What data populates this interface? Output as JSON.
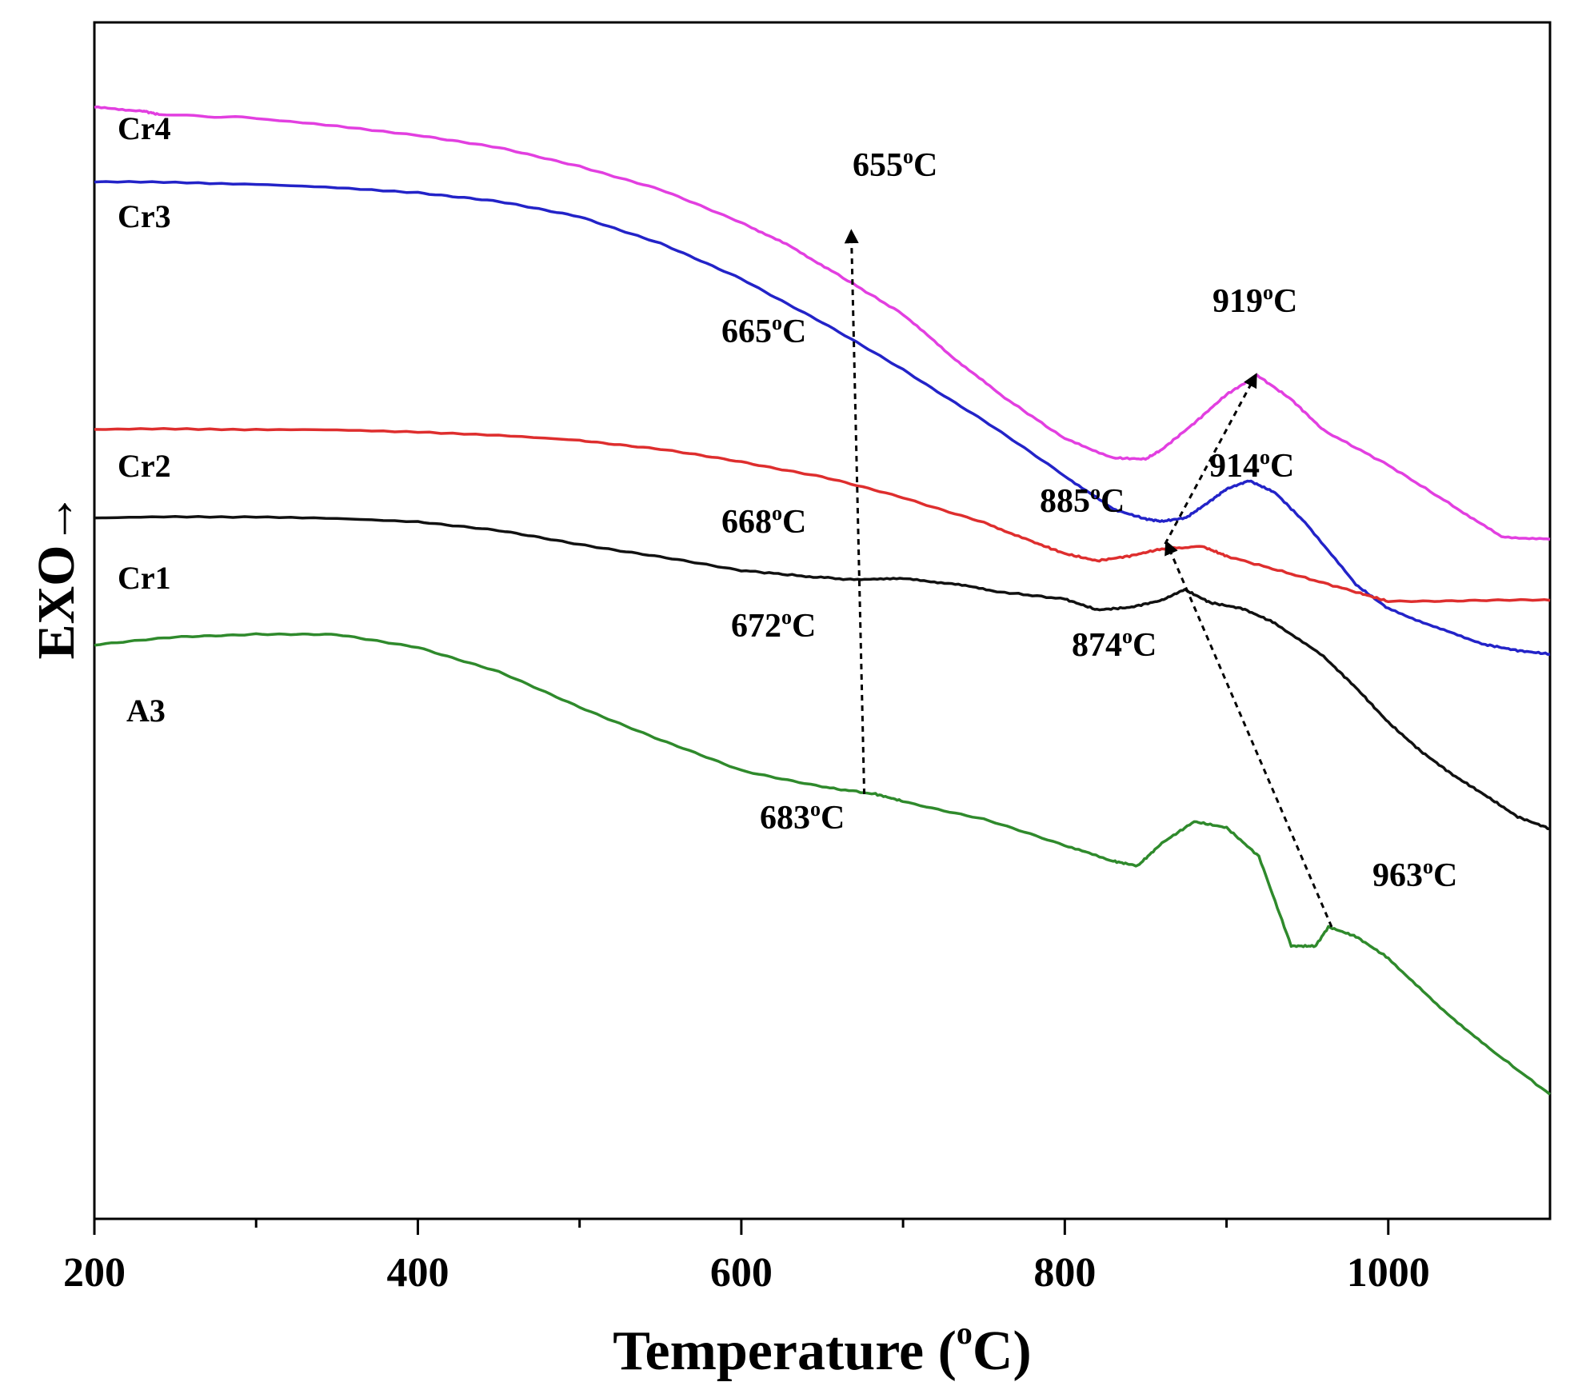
{
  "chart_data": {
    "type": "line",
    "title": "",
    "xlabel": "Temperature (",
    "xlabel_sup": "o",
    "xlabel_end": "C)",
    "ylabel": "EXO→",
    "xlim": [
      200,
      1100
    ],
    "ylim": [
      0,
      100
    ],
    "x_ticks": [
      200,
      400,
      600,
      800,
      1000
    ],
    "x_ticks_minor": [
      300,
      500,
      700,
      900
    ],
    "grid": false,
    "legend": "none",
    "colors": {
      "axis": "#000000",
      "arrow": "#000000"
    },
    "series": [
      {
        "name": "Cr4",
        "color": "#e23fe0",
        "x": [
          200,
          230,
          240,
          300,
          400,
          450,
          500,
          550,
          600,
          630,
          660,
          700,
          730,
          760,
          800,
          830,
          850,
          860,
          880,
          900,
          919,
          940,
          960,
          1000,
          1040,
          1070,
          1100
        ],
        "y": [
          92.9,
          92.6,
          92.3,
          92.0,
          90.6,
          89.5,
          88.0,
          86.0,
          83.3,
          81.3,
          78.9,
          75.6,
          72.1,
          68.9,
          65.2,
          63.6,
          63.5,
          64.3,
          66.5,
          68.9,
          70.5,
          68.5,
          65.9,
          63.0,
          59.6,
          57.0,
          56.8
        ]
      },
      {
        "name": "Cr3",
        "color": "#2323c8",
        "x": [
          200,
          300,
          400,
          450,
          500,
          550,
          600,
          650,
          700,
          750,
          800,
          830,
          850,
          860,
          875,
          890,
          900,
          914,
          930,
          950,
          980,
          1000,
          1030,
          1060,
          1080,
          1100
        ],
        "y": [
          86.7,
          86.5,
          85.8,
          85.0,
          83.8,
          81.5,
          78.6,
          74.9,
          71.0,
          66.7,
          62.1,
          59.3,
          58.5,
          58.3,
          58.6,
          60.0,
          61.0,
          61.7,
          60.7,
          58.0,
          53.0,
          51.0,
          49.4,
          48.0,
          47.5,
          47.2
        ]
      },
      {
        "name": "Cr2",
        "color": "#de2e2e",
        "x": [
          200,
          300,
          400,
          500,
          550,
          600,
          650,
          700,
          750,
          780,
          800,
          820,
          840,
          860,
          885,
          900,
          940,
          980,
          1000,
          1050,
          1100
        ],
        "y": [
          66.0,
          66.0,
          65.8,
          65.1,
          64.3,
          63.3,
          62.0,
          60.3,
          58.2,
          56.6,
          55.6,
          55.0,
          55.4,
          56.0,
          56.2,
          55.4,
          53.9,
          52.4,
          51.6,
          51.7,
          51.7
        ]
      },
      {
        "name": "Cr1",
        "color": "#111111",
        "x": [
          200,
          300,
          400,
          450,
          500,
          550,
          600,
          640,
          672,
          700,
          730,
          760,
          800,
          820,
          840,
          860,
          874,
          890,
          910,
          930,
          960,
          980,
          1000,
          1020,
          1040,
          1060,
          1080,
          1100
        ],
        "y": [
          58.6,
          58.7,
          58.3,
          57.5,
          56.4,
          55.3,
          54.2,
          53.7,
          53.4,
          53.5,
          53.1,
          52.4,
          51.8,
          50.9,
          51.1,
          51.7,
          52.6,
          51.5,
          51.0,
          49.8,
          47.0,
          44.4,
          41.5,
          39.1,
          37.1,
          35.4,
          33.6,
          32.6
        ]
      },
      {
        "name": "A3",
        "color": "#2f8a2c",
        "x": [
          200,
          250,
          300,
          350,
          400,
          450,
          500,
          550,
          600,
          650,
          683,
          700,
          750,
          800,
          830,
          845,
          860,
          880,
          900,
          920,
          940,
          955,
          963,
          980,
          1000,
          1030,
          1060,
          1100
        ],
        "y": [
          48.0,
          48.6,
          48.9,
          48.8,
          47.8,
          45.7,
          42.8,
          40.0,
          37.5,
          36.1,
          35.5,
          34.9,
          33.4,
          31.2,
          29.9,
          29.5,
          31.4,
          33.2,
          32.7,
          30.3,
          22.8,
          22.8,
          24.4,
          23.6,
          21.8,
          17.9,
          14.5,
          10.4
        ]
      }
    ],
    "series_labels": [
      "Cr4",
      "Cr3",
      "Cr2",
      "Cr1",
      "A3"
    ],
    "annotations": [
      {
        "text": "655",
        "unit": "C",
        "sup": "o"
      },
      {
        "text": "665",
        "unit": "C",
        "sup": "o"
      },
      {
        "text": "668",
        "unit": "C",
        "sup": "o"
      },
      {
        "text": "672",
        "unit": "C",
        "sup": "o"
      },
      {
        "text": "683",
        "unit": "C",
        "sup": "o"
      },
      {
        "text": "919",
        "unit": "C",
        "sup": "o"
      },
      {
        "text": "914",
        "unit": "C",
        "sup": "o"
      },
      {
        "text": "885",
        "unit": "C",
        "sup": "o"
      },
      {
        "text": "874",
        "unit": "C",
        "sup": "o"
      },
      {
        "text": "963",
        "unit": "C",
        "sup": "o"
      }
    ],
    "arrows": [
      {
        "from": [
          676,
          35.5
        ],
        "to": [
          668,
          82.5
        ]
      },
      {
        "from": [
          965,
          24.4
        ],
        "to": [
          863,
          56.5
        ]
      },
      {
        "from": [
          862,
          56.4
        ],
        "to": [
          918,
          70.5
        ]
      }
    ]
  }
}
